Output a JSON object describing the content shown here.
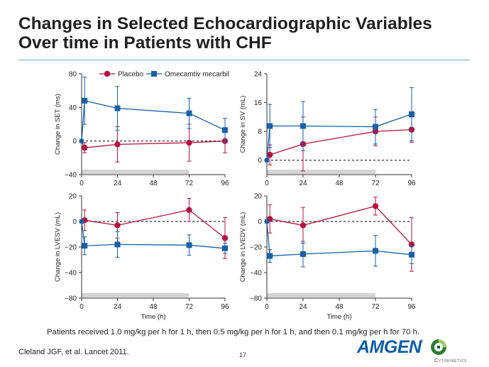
{
  "slide": {
    "title_line1": "Changes in Selected Echocardiographic Variables",
    "title_line2": "Over time in Patients with CHF",
    "footnote": "Patients received 1.0 mg/kg per h for 1 h, then 0.5 mg/kg per h for 1 h, and then 0.1 mg/kg per h for 70 h.",
    "citation": "Cleland JGF, et al. Lancet 2011.",
    "page_number": "17",
    "logo_amgen": "AMGEN",
    "logo_amgen_mark": "®",
    "logo_cytokinetics": "Cytokinetics"
  },
  "colors": {
    "placebo": "#b5123e",
    "omecamtiv": "#1660a8",
    "axis": "#333333",
    "infusion_bar": "#d4d4d4",
    "rule": "#6aa4c8"
  },
  "chart_data": [
    {
      "type": "line",
      "id": "set",
      "title": "",
      "xlabel": "",
      "ylabel": "Change in SET (ms)",
      "x_ticks": [
        "0",
        "24",
        "48",
        "72",
        "96"
      ],
      "y_ticks": [
        "80",
        "40",
        "0",
        "−40"
      ],
      "xlim": [
        0,
        96
      ],
      "ylim": [
        -40,
        80
      ],
      "legend": {
        "position": "top",
        "entries": [
          "Placebo",
          "Omecamtiv mecarbil"
        ]
      },
      "infusion_period_hours": [
        0,
        72
      ],
      "series": [
        {
          "name": "Placebo",
          "x": [
            0,
            2,
            24,
            72,
            96
          ],
          "y": [
            0,
            -8,
            -4,
            -2,
            0
          ],
          "err": [
            null,
            6,
            21,
            22,
            14
          ]
        },
        {
          "name": "Omecamtiv mecarbil",
          "x": [
            0,
            2,
            24,
            72,
            96
          ],
          "y": [
            0,
            48,
            39,
            33,
            13
          ],
          "err": [
            null,
            28,
            26,
            18,
            14
          ]
        }
      ]
    },
    {
      "type": "line",
      "id": "sv",
      "title": "",
      "xlabel": "",
      "ylabel": "Change in SV (mL)",
      "x_ticks": [
        "0",
        "24",
        "48",
        "72",
        "96"
      ],
      "y_ticks": [
        "24",
        "16",
        "8",
        "0"
      ],
      "xlim": [
        0,
        96
      ],
      "ylim": [
        -4,
        24
      ],
      "infusion_period_hours": [
        0,
        72
      ],
      "series": [
        {
          "name": "Placebo",
          "x": [
            0,
            2,
            24,
            72,
            96
          ],
          "y": [
            0,
            1.5,
            4.5,
            8,
            8.5
          ],
          "err": [
            null,
            2.8,
            7.5,
            4,
            3.5
          ]
        },
        {
          "name": "Omecamtiv mecarbil",
          "x": [
            0,
            2,
            24,
            72,
            96
          ],
          "y": [
            0,
            9.5,
            9.5,
            9.3,
            12.8
          ],
          "err": [
            null,
            6,
            6.8,
            4.8,
            7.4
          ]
        }
      ]
    },
    {
      "type": "line",
      "id": "lvesv",
      "title": "",
      "xlabel": "Time (h)",
      "ylabel": "Change in LVESV (mL)",
      "x_ticks": [
        "0",
        "24",
        "48",
        "72",
        "96"
      ],
      "y_ticks": [
        "20",
        "0",
        "−20",
        "−40",
        "−80"
      ],
      "xlim": [
        0,
        96
      ],
      "ylim": [
        -80,
        20
      ],
      "infusion_period_hours": [
        0,
        72
      ],
      "series": [
        {
          "name": "Placebo",
          "x": [
            0,
            2,
            24,
            72,
            96
          ],
          "y": [
            0,
            1,
            -3,
            9,
            -13
          ],
          "err": [
            null,
            8,
            10,
            9,
            16
          ]
        },
        {
          "name": "Omecamtiv mecarbil",
          "x": [
            0,
            2,
            24,
            72,
            96
          ],
          "y": [
            0,
            -19,
            -18,
            -18.5,
            -21
          ],
          "err": [
            null,
            7,
            10,
            8,
            4
          ]
        }
      ]
    },
    {
      "type": "line",
      "id": "lvedv",
      "title": "",
      "xlabel": "Time (h)",
      "ylabel": "Change in LVEDV (mL)",
      "x_ticks": [
        "0",
        "24",
        "48",
        "72",
        "96"
      ],
      "y_ticks": [
        "20",
        "0",
        "−20",
        "−40",
        "−80"
      ],
      "xlim": [
        0,
        96
      ],
      "ylim": [
        -80,
        20
      ],
      "infusion_period_hours": [
        0,
        72
      ],
      "series": [
        {
          "name": "Placebo",
          "x": [
            0,
            2,
            24,
            72,
            96
          ],
          "y": [
            0,
            2,
            -3,
            12,
            -18
          ],
          "err": [
            null,
            11,
            14,
            7,
            21
          ]
        },
        {
          "name": "Omecamtiv mecarbil",
          "x": [
            0,
            2,
            24,
            72,
            96
          ],
          "y": [
            0,
            -27,
            -25.5,
            -23,
            -26
          ],
          "err": [
            null,
            5,
            10,
            12,
            7
          ]
        }
      ]
    }
  ]
}
